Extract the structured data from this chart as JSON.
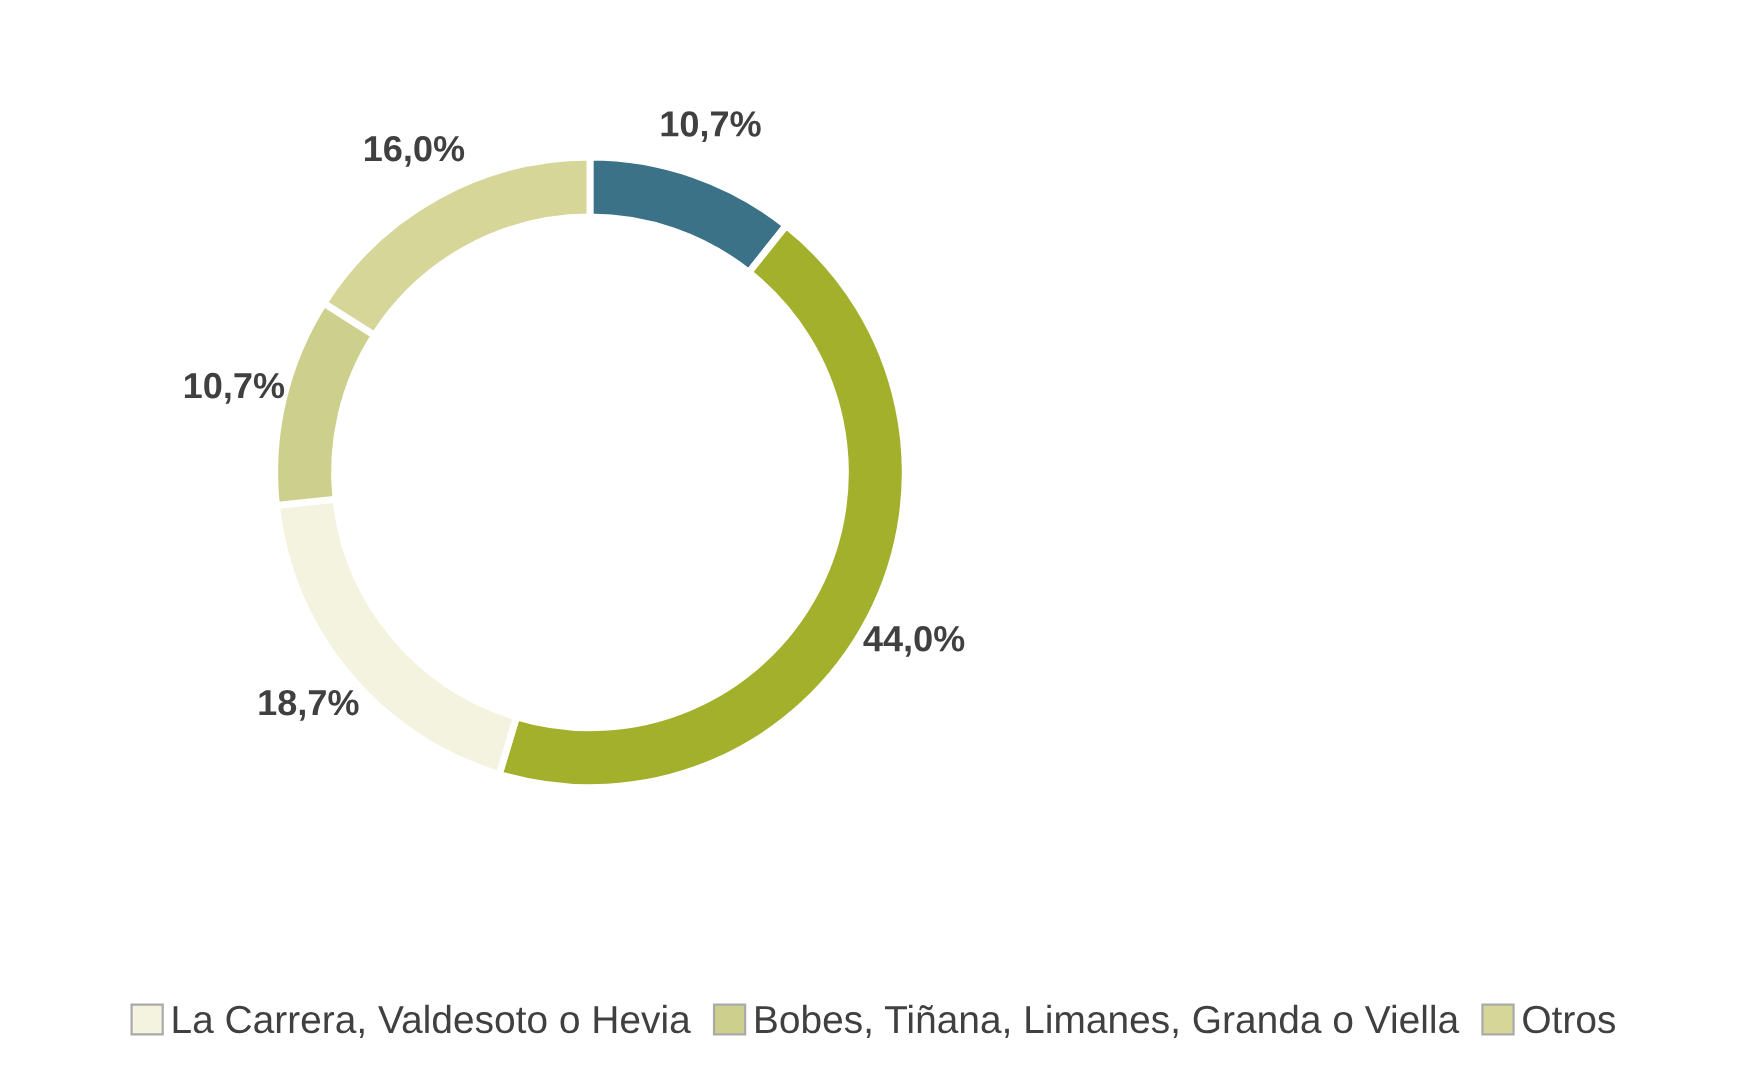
{
  "chart_data": {
    "type": "donut",
    "categories": [
      null,
      null,
      "La Carrera, Valdesoto o Hevia",
      "Bobes, Tiñana, Limanes, Granda o Viella",
      "Otros"
    ],
    "values": [
      10.7,
      44.0,
      18.7,
      10.7,
      16.0
    ],
    "colors": [
      "#3b7287",
      "#a3b02c",
      "#f3f3df",
      "#cdd08c",
      "#d6d699"
    ],
    "value_labels": [
      "10,7%",
      "44,0%",
      "18,7%",
      "10,7%",
      "16,0%"
    ],
    "legend": "bottom"
  }
}
